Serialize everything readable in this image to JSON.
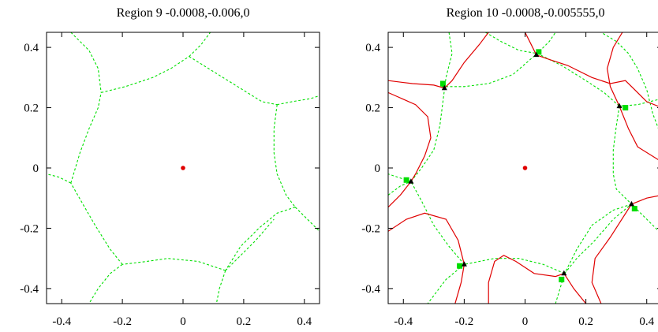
{
  "chart_data": [
    {
      "type": "scatter",
      "title": "Region 9 -0.0008,-0.006,0",
      "xlim": [
        -0.45,
        0.45
      ],
      "ylim": [
        -0.45,
        0.45
      ],
      "x_ticks": [
        -0.4,
        -0.2,
        0,
        0.2,
        0.4
      ],
      "y_ticks": [
        -0.4,
        -0.2,
        0,
        0.2,
        0.4
      ],
      "x_tick_labels": [
        "-0.4",
        "-0.2",
        "0",
        "0.2",
        "0.4"
      ],
      "y_tick_labels": [
        "0.4",
        "0.2",
        "0",
        "-0.2",
        "-0.4"
      ],
      "grid": false,
      "colors": {
        "boundary": "#00e000",
        "center": "#e00000"
      },
      "center_point": {
        "x": 0,
        "y": 0
      },
      "boundary_curves": [
        [
          [
            -0.37,
            0.45
          ],
          [
            -0.31,
            0.39
          ],
          [
            -0.28,
            0.33
          ],
          [
            -0.27,
            0.25
          ]
        ],
        [
          [
            -0.27,
            0.25
          ],
          [
            -0.19,
            0.27
          ],
          [
            -0.1,
            0.3
          ],
          [
            -0.04,
            0.33
          ],
          [
            0.02,
            0.37
          ]
        ],
        [
          [
            0.02,
            0.37
          ],
          [
            0.06,
            0.41
          ],
          [
            0.09,
            0.45
          ]
        ],
        [
          [
            0.02,
            0.37
          ],
          [
            0.1,
            0.32
          ],
          [
            0.18,
            0.27
          ],
          [
            0.26,
            0.22
          ],
          [
            0.31,
            0.21
          ]
        ],
        [
          [
            0.31,
            0.21
          ],
          [
            0.36,
            0.22
          ],
          [
            0.42,
            0.23
          ],
          [
            0.45,
            0.24
          ]
        ],
        [
          [
            0.31,
            0.21
          ],
          [
            0.3,
            0.13
          ],
          [
            0.3,
            0.05
          ],
          [
            0.31,
            -0.02
          ],
          [
            0.34,
            -0.09
          ],
          [
            0.37,
            -0.13
          ]
        ],
        [
          [
            0.37,
            -0.13
          ],
          [
            0.4,
            -0.16
          ],
          [
            0.45,
            -0.21
          ]
        ],
        [
          [
            0.37,
            -0.13
          ],
          [
            0.31,
            -0.15
          ],
          [
            0.25,
            -0.2
          ],
          [
            0.19,
            -0.26
          ],
          [
            0.14,
            -0.34
          ]
        ],
        [
          [
            0.14,
            -0.34
          ],
          [
            0.18,
            -0.3
          ],
          [
            0.24,
            -0.24
          ],
          [
            0.3,
            -0.17
          ]
        ],
        [
          [
            0.14,
            -0.34
          ],
          [
            0.05,
            -0.31
          ],
          [
            -0.05,
            -0.3
          ],
          [
            -0.12,
            -0.31
          ],
          [
            -0.2,
            -0.32
          ]
        ],
        [
          [
            0.14,
            -0.34
          ],
          [
            0.12,
            -0.4
          ],
          [
            0.11,
            -0.45
          ]
        ],
        [
          [
            -0.2,
            -0.32
          ],
          [
            -0.24,
            -0.35
          ],
          [
            -0.28,
            -0.4
          ],
          [
            -0.31,
            -0.45
          ]
        ],
        [
          [
            -0.2,
            -0.32
          ],
          [
            -0.24,
            -0.27
          ],
          [
            -0.29,
            -0.19
          ],
          [
            -0.33,
            -0.12
          ],
          [
            -0.37,
            -0.05
          ]
        ],
        [
          [
            -0.37,
            -0.05
          ],
          [
            -0.41,
            -0.03
          ],
          [
            -0.45,
            -0.02
          ]
        ],
        [
          [
            -0.37,
            -0.05
          ],
          [
            -0.34,
            0.05
          ],
          [
            -0.31,
            0.13
          ],
          [
            -0.28,
            0.2
          ],
          [
            -0.27,
            0.25
          ]
        ]
      ],
      "red_curves": []
    },
    {
      "type": "scatter",
      "title": "Region 10 -0.0008,-0.005555,0",
      "xlim": [
        -0.45,
        0.45
      ],
      "ylim": [
        -0.45,
        0.45
      ],
      "x_ticks": [
        -0.4,
        -0.2,
        0,
        0.2,
        0.4
      ],
      "y_ticks": [
        -0.4,
        -0.2,
        0,
        0.2,
        0.4
      ],
      "x_tick_labels": [
        "-0.4",
        "-0.2",
        "0",
        "0.2",
        "0.4"
      ],
      "y_tick_labels": [
        "0.4",
        "0.2",
        "0",
        "-0.2",
        "-0.4"
      ],
      "grid": false,
      "colors": {
        "boundary": "#00e000",
        "red_curve": "#e00000",
        "center": "#e00000",
        "square_marker": "#00dd00",
        "triangle_marker": "#000000"
      },
      "center_point": {
        "x": 0,
        "y": 0
      },
      "square_markers": [
        {
          "x": -0.27,
          "y": 0.28
        },
        {
          "x": 0.045,
          "y": 0.385
        },
        {
          "x": 0.33,
          "y": 0.2
        },
        {
          "x": 0.36,
          "y": -0.135
        },
        {
          "x": 0.12,
          "y": -0.37
        },
        {
          "x": -0.215,
          "y": -0.325
        },
        {
          "x": -0.39,
          "y": -0.04
        }
      ],
      "triangle_markers": [
        {
          "x": -0.265,
          "y": 0.265
        },
        {
          "x": 0.037,
          "y": 0.375
        },
        {
          "x": 0.31,
          "y": 0.205
        },
        {
          "x": 0.35,
          "y": -0.12
        },
        {
          "x": 0.128,
          "y": -0.35
        },
        {
          "x": -0.2,
          "y": -0.32
        },
        {
          "x": -0.375,
          "y": -0.045
        }
      ],
      "boundary_curves": [
        [
          [
            -0.25,
            0.45
          ],
          [
            -0.24,
            0.38
          ],
          [
            -0.26,
            0.3
          ],
          [
            -0.27,
            0.22
          ],
          [
            -0.28,
            0.14
          ],
          [
            -0.3,
            0.06
          ],
          [
            -0.34,
            0.0
          ],
          [
            -0.375,
            -0.045
          ]
        ],
        [
          [
            -0.275,
            0.27
          ],
          [
            -0.2,
            0.27
          ],
          [
            -0.12,
            0.28
          ],
          [
            -0.04,
            0.31
          ],
          [
            0.04,
            0.38
          ],
          [
            0.08,
            0.42
          ],
          [
            0.1,
            0.45
          ]
        ],
        [
          [
            -0.13,
            0.45
          ],
          [
            -0.08,
            0.42
          ],
          [
            -0.02,
            0.39
          ],
          [
            0.04,
            0.38
          ],
          [
            0.12,
            0.34
          ],
          [
            0.2,
            0.29
          ],
          [
            0.26,
            0.25
          ],
          [
            0.31,
            0.205
          ],
          [
            0.37,
            0.21
          ],
          [
            0.45,
            0.23
          ]
        ],
        [
          [
            0.31,
            0.205
          ],
          [
            0.3,
            0.14
          ],
          [
            0.29,
            0.06
          ],
          [
            0.29,
            -0.02
          ],
          [
            0.3,
            -0.07
          ],
          [
            0.33,
            -0.1
          ],
          [
            0.35,
            -0.12
          ],
          [
            0.38,
            -0.15
          ],
          [
            0.45,
            -0.22
          ]
        ],
        [
          [
            0.35,
            -0.12
          ],
          [
            0.29,
            -0.14
          ],
          [
            0.22,
            -0.19
          ],
          [
            0.17,
            -0.27
          ],
          [
            0.13,
            -0.35
          ],
          [
            0.1,
            -0.45
          ]
        ],
        [
          [
            0.13,
            -0.35
          ],
          [
            0.17,
            -0.3
          ],
          [
            0.23,
            -0.24
          ],
          [
            0.29,
            -0.17
          ],
          [
            0.35,
            -0.12
          ]
        ],
        [
          [
            0.13,
            -0.35
          ],
          [
            0.06,
            -0.32
          ],
          [
            -0.02,
            -0.3
          ],
          [
            -0.1,
            -0.3
          ],
          [
            -0.2,
            -0.32
          ],
          [
            -0.26,
            -0.37
          ],
          [
            -0.32,
            -0.45
          ]
        ],
        [
          [
            -0.2,
            -0.32
          ],
          [
            -0.25,
            -0.26
          ],
          [
            -0.3,
            -0.19
          ],
          [
            -0.34,
            -0.11
          ],
          [
            -0.375,
            -0.045
          ],
          [
            -0.42,
            -0.03
          ],
          [
            -0.45,
            -0.02
          ]
        ],
        [
          [
            -0.45,
            -0.09
          ],
          [
            -0.41,
            -0.06
          ],
          [
            -0.375,
            -0.045
          ]
        ],
        [
          [
            0.45,
            0.1
          ],
          [
            0.42,
            0.18
          ],
          [
            0.4,
            0.26
          ],
          [
            0.37,
            0.33
          ],
          [
            0.34,
            0.38
          ],
          [
            0.3,
            0.42
          ],
          [
            0.25,
            0.45
          ]
        ]
      ],
      "red_curves": [
        [
          [
            -0.45,
            0.29
          ],
          [
            -0.37,
            0.28
          ],
          [
            -0.3,
            0.275
          ],
          [
            -0.265,
            0.265
          ],
          [
            -0.24,
            0.29
          ],
          [
            -0.2,
            0.35
          ],
          [
            -0.15,
            0.41
          ],
          [
            -0.12,
            0.45
          ]
        ],
        [
          [
            -0.45,
            0.25
          ],
          [
            -0.36,
            0.21
          ],
          [
            -0.32,
            0.17
          ],
          [
            -0.31,
            0.1
          ],
          [
            -0.33,
            0.04
          ],
          [
            -0.36,
            -0.02
          ],
          [
            -0.375,
            -0.045
          ],
          [
            -0.41,
            -0.09
          ],
          [
            -0.45,
            -0.13
          ]
        ],
        [
          [
            -0.45,
            -0.21
          ],
          [
            -0.39,
            -0.17
          ],
          [
            -0.33,
            -0.15
          ],
          [
            -0.26,
            -0.17
          ],
          [
            -0.22,
            -0.24
          ],
          [
            -0.2,
            -0.32
          ],
          [
            -0.21,
            -0.38
          ],
          [
            -0.23,
            -0.45
          ]
        ],
        [
          [
            -0.12,
            -0.45
          ],
          [
            -0.12,
            -0.38
          ],
          [
            -0.1,
            -0.31
          ],
          [
            -0.07,
            -0.29
          ],
          [
            -0.03,
            -0.31
          ],
          [
            0.03,
            -0.35
          ],
          [
            0.1,
            -0.36
          ],
          [
            0.128,
            -0.35
          ],
          [
            0.16,
            -0.4
          ],
          [
            0.2,
            -0.45
          ]
        ],
        [
          [
            0.25,
            -0.45
          ],
          [
            0.22,
            -0.38
          ],
          [
            0.23,
            -0.3
          ],
          [
            0.28,
            -0.23
          ],
          [
            0.35,
            -0.12
          ],
          [
            0.4,
            -0.1
          ],
          [
            0.45,
            -0.09
          ]
        ],
        [
          [
            0.45,
            0.02
          ],
          [
            0.37,
            0.07
          ],
          [
            0.34,
            0.13
          ],
          [
            0.31,
            0.205
          ],
          [
            0.28,
            0.27
          ],
          [
            0.27,
            0.33
          ],
          [
            0.29,
            0.4
          ],
          [
            0.32,
            0.45
          ]
        ],
        [
          [
            0.45,
            0.2
          ],
          [
            0.4,
            0.22
          ],
          [
            0.36,
            0.26
          ],
          [
            0.33,
            0.29
          ],
          [
            0.28,
            0.28
          ],
          [
            0.22,
            0.3
          ],
          [
            0.14,
            0.34
          ],
          [
            0.08,
            0.36
          ],
          [
            0.037,
            0.375
          ],
          [
            0.02,
            0.41
          ],
          [
            0.0,
            0.45
          ]
        ]
      ]
    }
  ]
}
